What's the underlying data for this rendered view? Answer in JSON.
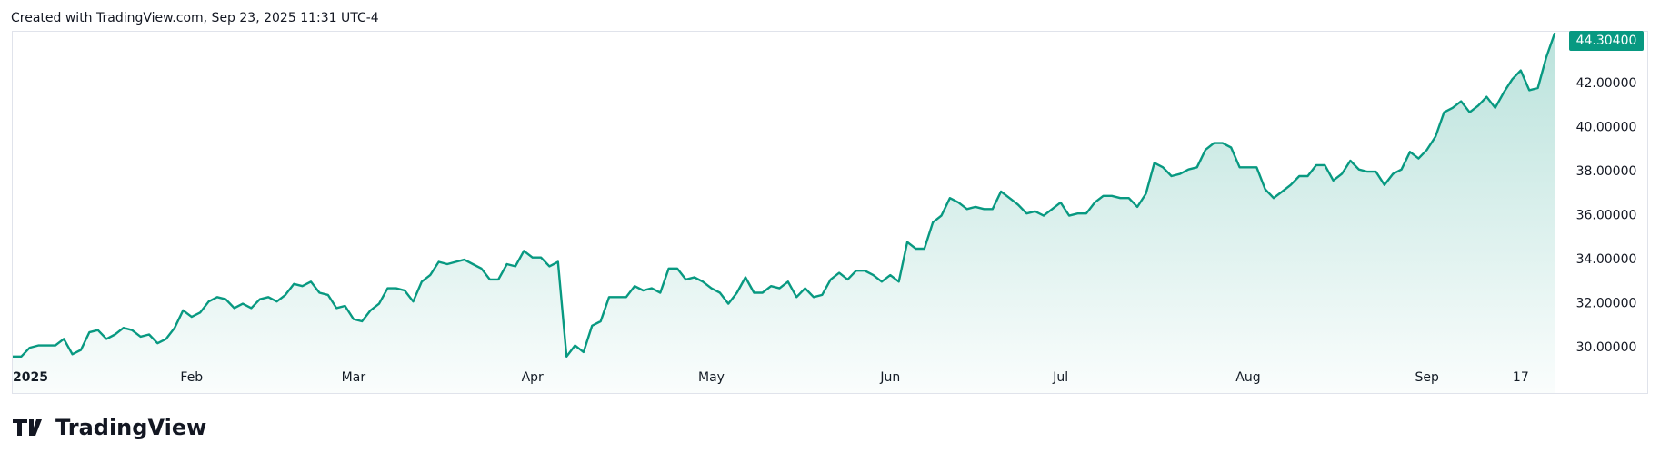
{
  "credit": "Created with TradingView.com, Sep 23, 2025 11:31 UTC-4",
  "logo_text": "TradingView",
  "chart_data": {
    "type": "line",
    "color": "#089981",
    "values": [
      29.6,
      29.6,
      30.0,
      30.1,
      30.1,
      30.1,
      30.4,
      29.7,
      29.9,
      30.7,
      30.8,
      30.4,
      30.6,
      30.9,
      30.8,
      30.5,
      30.6,
      30.2,
      30.4,
      30.9,
      31.7,
      31.4,
      31.6,
      32.1,
      32.3,
      32.2,
      31.8,
      32.0,
      31.8,
      32.2,
      32.3,
      32.1,
      32.4,
      32.9,
      32.8,
      33.0,
      32.5,
      32.4,
      31.8,
      31.9,
      31.3,
      31.2,
      31.7,
      32.0,
      32.7,
      32.7,
      32.6,
      32.1,
      33.0,
      33.3,
      33.9,
      33.8,
      33.9,
      34.0,
      33.8,
      33.6,
      33.1,
      33.1,
      33.8,
      33.7,
      34.4,
      34.1,
      34.1,
      33.7,
      33.9,
      29.6,
      30.1,
      29.8,
      31.0,
      31.2,
      32.3,
      32.3,
      32.3,
      32.8,
      32.6,
      32.7,
      32.5,
      33.6,
      33.6,
      33.1,
      33.2,
      33.0,
      32.7,
      32.5,
      32.0,
      32.5,
      33.2,
      32.5,
      32.5,
      32.8,
      32.7,
      33.0,
      32.3,
      32.7,
      32.3,
      32.4,
      33.1,
      33.4,
      33.1,
      33.5,
      33.5,
      33.3,
      33.0,
      33.3,
      33.0,
      34.8,
      34.5,
      34.5,
      35.7,
      36.0,
      36.8,
      36.6,
      36.3,
      36.4,
      36.3,
      36.3,
      37.1,
      36.8,
      36.5,
      36.1,
      36.2,
      36.0,
      36.3,
      36.6,
      36.0,
      36.1,
      36.1,
      36.6,
      36.9,
      36.9,
      36.8,
      36.8,
      36.4,
      37.0,
      38.4,
      38.2,
      37.8,
      37.9,
      38.1,
      38.2,
      39.0,
      39.3,
      39.3,
      39.1,
      38.2,
      38.2,
      38.2,
      37.2,
      36.8,
      37.1,
      37.4,
      37.8,
      37.8,
      38.3,
      38.3,
      37.6,
      37.9,
      38.5,
      38.1,
      38.0,
      38.0,
      37.4,
      37.9,
      38.1,
      38.9,
      38.6,
      39.0,
      39.6,
      40.7,
      40.9,
      41.2,
      40.7,
      41.0,
      41.4,
      40.9,
      41.6,
      42.2,
      42.6,
      41.7,
      41.8,
      43.2,
      44.304
    ],
    "last_label": "44.30400",
    "xlim": [
      0,
      181.5
    ],
    "xticks": [
      {
        "value": 0,
        "label": "2025"
      },
      {
        "value": 21,
        "label": "Feb"
      },
      {
        "value": 40,
        "label": "Mar"
      },
      {
        "value": 61,
        "label": "Apr"
      },
      {
        "value": 82,
        "label": "May"
      },
      {
        "value": 103,
        "label": "Jun"
      },
      {
        "value": 123,
        "label": "Jul"
      },
      {
        "value": 145,
        "label": "Aug"
      },
      {
        "value": 166,
        "label": "Sep"
      },
      {
        "value": 177,
        "label": "17"
      }
    ],
    "ylim": [
      27.94,
      44.4
    ],
    "yticks": [
      {
        "value": 30,
        "label": "30.00000"
      },
      {
        "value": 32,
        "label": "32.00000"
      },
      {
        "value": 34,
        "label": "34.00000"
      },
      {
        "value": 36,
        "label": "36.00000"
      },
      {
        "value": 38,
        "label": "38.00000"
      },
      {
        "value": 40,
        "label": "40.00000"
      },
      {
        "value": 42,
        "label": "42.00000"
      }
    ]
  }
}
